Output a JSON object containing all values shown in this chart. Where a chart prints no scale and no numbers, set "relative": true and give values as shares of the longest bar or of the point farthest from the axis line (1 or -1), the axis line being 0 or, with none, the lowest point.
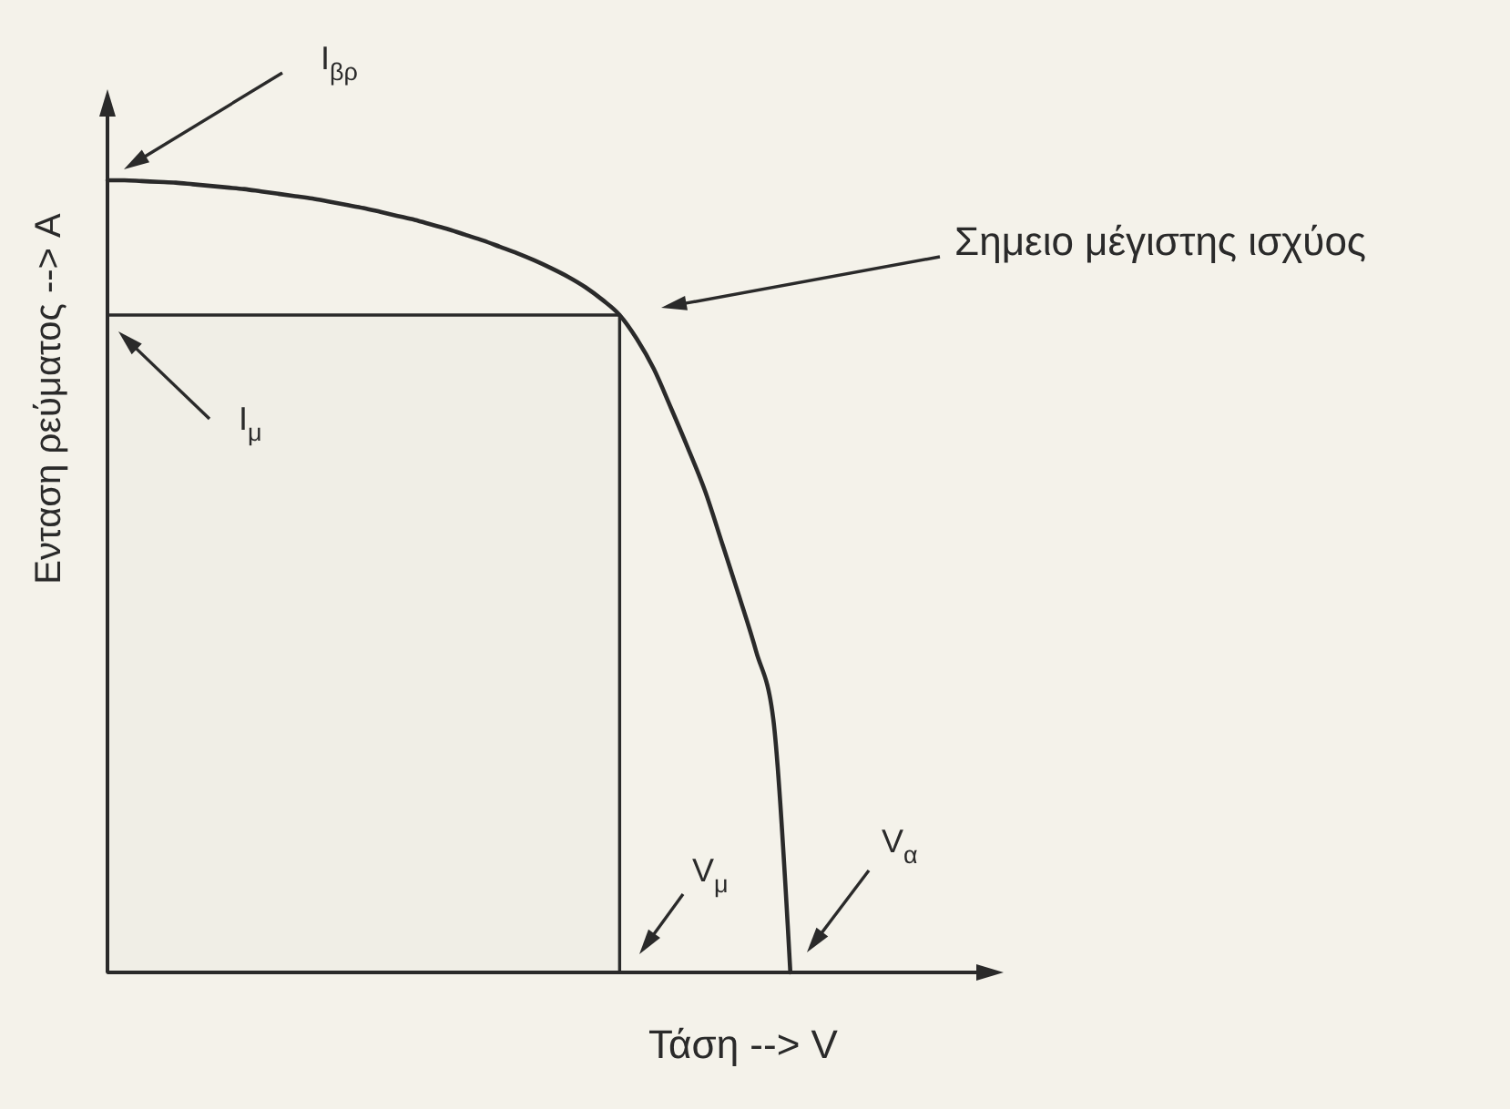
{
  "chart_data": {
    "type": "line",
    "relative": true,
    "xlabel": "Τάση --> V",
    "ylabel": "Ενταση ρεύματος --> A",
    "categories": [
      null,
      null,
      null,
      null,
      null,
      null,
      null,
      null,
      null,
      null,
      null,
      null,
      null,
      null,
      null,
      null,
      null,
      null,
      null,
      null,
      null,
      null,
      null,
      null,
      null,
      null,
      null,
      null,
      null,
      null,
      null,
      null,
      null,
      null,
      null,
      null,
      null,
      null,
      null,
      null,
      null
    ],
    "series": [
      {
        "color": "#2a2a2a",
        "values": [
          1,
          1,
          0.999,
          0.998,
          0.997,
          0.995,
          0.993,
          0.991,
          0.989,
          0.986,
          0.983,
          0.98,
          0.977,
          0.973,
          0.969,
          0.965,
          0.96,
          0.955,
          0.95,
          0.944,
          0.938,
          0.931,
          0.924,
          0.916,
          0.908,
          0.899,
          0.889,
          0.878,
          0.865,
          0.849,
          0.83,
          0.8,
          0.762,
          0.713,
          0.662,
          0.608,
          0.542,
          0.475,
          0.405,
          0.32,
          0
        ]
      },
      {
        "type": "area",
        "color": "#2a2a2a",
        "values": [
          0.83,
          0.83,
          0.83,
          0.83,
          0.83,
          0.83,
          0.83,
          0.83,
          0.83,
          0.83,
          0.83,
          0.83,
          0.83,
          0.83,
          0.83,
          0.83,
          0.83,
          0.83,
          0.83,
          0.83,
          0.83,
          0.83,
          0.83,
          0.83,
          0.83,
          0.83,
          0.83,
          0.83,
          0.83,
          0.83,
          0.83,
          null,
          null,
          null,
          null,
          null,
          null,
          null,
          null,
          null,
          null
        ]
      }
    ],
    "annotations": [
      "I$_{βρ}$",
      "I$_{μ}$",
      "Σημειο μέγιστης ισχύος",
      "V$_{μ}$",
      "V$_{α}$"
    ]
  }
}
